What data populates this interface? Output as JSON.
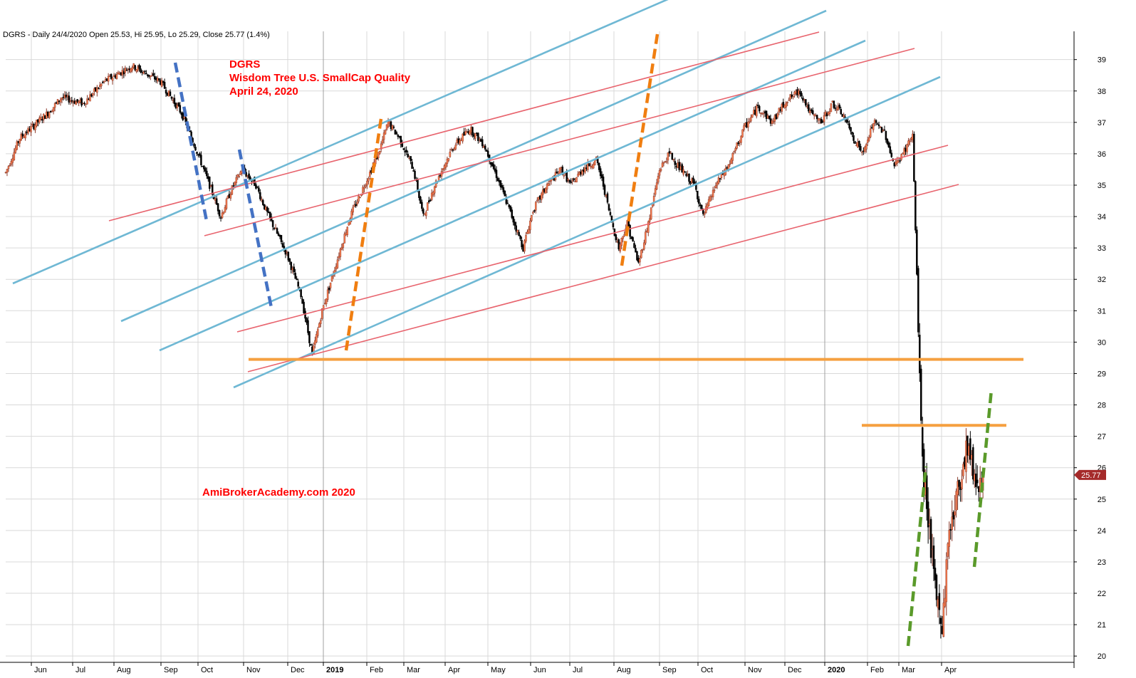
{
  "header_text": "DGRS - Daily 24/4/2020 Open 25.53, Hi 25.95, Lo 25.29, Close 25.77 (1.4%)",
  "annotations": {
    "ticker": "DGRS",
    "name": "Wisdom Tree U.S. SmallCap Quality",
    "date": "April 24, 2020",
    "watermark": "AmiBrokerAcademy.com  2020"
  },
  "colors": {
    "up_candle": "#ff7f50",
    "down_candle": "#000000",
    "channel_blue": "#6fb8d4",
    "trend_red": "#e8646e",
    "support_orange": "#f5a040",
    "dash_blue": "#4472c4",
    "dash_orange": "#f07e10",
    "dash_green": "#5a9a2a",
    "grid": "#d9d9d9",
    "last_price_bg": "#a52a2a"
  },
  "chart_data": {
    "type": "candlestick",
    "symbol": "DGRS",
    "ylim": [
      19.8,
      39.9
    ],
    "yticks": [
      20,
      21,
      22,
      23,
      24,
      25,
      26,
      27,
      28,
      29,
      30,
      31,
      32,
      33,
      34,
      35,
      36,
      37,
      38,
      39
    ],
    "x_tick_labels": [
      {
        "label": "Jun",
        "bold": false
      },
      {
        "label": "Jul",
        "bold": false
      },
      {
        "label": "Aug",
        "bold": false
      },
      {
        "label": "Sep",
        "bold": false
      },
      {
        "label": "Oct",
        "bold": false
      },
      {
        "label": "Nov",
        "bold": false
      },
      {
        "label": "Dec",
        "bold": false
      },
      {
        "label": "2019",
        "bold": true
      },
      {
        "label": "Feb",
        "bold": false
      },
      {
        "label": "Mar",
        "bold": false
      },
      {
        "label": "Apr",
        "bold": false
      },
      {
        "label": "May",
        "bold": false
      },
      {
        "label": "Jun",
        "bold": false
      },
      {
        "label": "Jul",
        "bold": false
      },
      {
        "label": "Aug",
        "bold": false
      },
      {
        "label": "Sep",
        "bold": false
      },
      {
        "label": "Oct",
        "bold": false
      },
      {
        "label": "Nov",
        "bold": false
      },
      {
        "label": "Dec",
        "bold": false
      },
      {
        "label": "2020",
        "bold": true
      },
      {
        "label": "Feb",
        "bold": false
      },
      {
        "label": "Mar",
        "bold": false
      },
      {
        "label": "Apr",
        "bold": false
      }
    ],
    "last_close": 25.77,
    "last_close_label": "25.77",
    "price_path": [
      [
        0,
        35.4
      ],
      [
        10,
        36.5
      ],
      [
        30,
        37.3
      ],
      [
        40,
        37.8
      ],
      [
        55,
        37.6
      ],
      [
        70,
        38.3
      ],
      [
        90,
        38.8
      ],
      [
        110,
        38.3
      ],
      [
        125,
        37.3
      ],
      [
        135,
        36.2
      ],
      [
        145,
        35.0
      ],
      [
        153,
        34.0
      ],
      [
        160,
        34.8
      ],
      [
        168,
        35.5
      ],
      [
        178,
        35.0
      ],
      [
        185,
        34.2
      ],
      [
        200,
        32.8
      ],
      [
        210,
        31.5
      ],
      [
        218,
        29.6
      ],
      [
        225,
        31.0
      ],
      [
        235,
        32.5
      ],
      [
        245,
        34.0
      ],
      [
        255,
        35.0
      ],
      [
        265,
        36.0
      ],
      [
        272,
        37.0
      ],
      [
        280,
        36.5
      ],
      [
        290,
        35.5
      ],
      [
        297,
        34.0
      ],
      [
        305,
        35.0
      ],
      [
        318,
        36.2
      ],
      [
        330,
        36.8
      ],
      [
        340,
        36.3
      ],
      [
        350,
        35.2
      ],
      [
        360,
        34.0
      ],
      [
        368,
        33.0
      ],
      [
        375,
        34.2
      ],
      [
        385,
        35.0
      ],
      [
        395,
        35.5
      ],
      [
        402,
        35.0
      ],
      [
        410,
        35.5
      ],
      [
        420,
        35.8
      ],
      [
        425,
        35.0
      ],
      [
        430,
        34.0
      ],
      [
        436,
        33.0
      ],
      [
        442,
        33.8
      ],
      [
        450,
        32.5
      ],
      [
        458,
        34.0
      ],
      [
        465,
        35.5
      ],
      [
        472,
        36.0
      ],
      [
        480,
        35.5
      ],
      [
        490,
        35.0
      ],
      [
        496,
        34.0
      ],
      [
        505,
        35.0
      ],
      [
        515,
        35.7
      ],
      [
        525,
        36.8
      ],
      [
        535,
        37.5
      ],
      [
        545,
        37.0
      ],
      [
        555,
        37.7
      ],
      [
        565,
        38.0
      ],
      [
        572,
        37.3
      ],
      [
        580,
        37.0
      ],
      [
        588,
        37.6
      ],
      [
        596,
        37.2
      ],
      [
        603,
        36.5
      ],
      [
        610,
        36.0
      ],
      [
        617,
        37.0
      ],
      [
        625,
        36.7
      ],
      [
        632,
        35.6
      ],
      [
        638,
        36.0
      ],
      [
        645,
        36.6
      ],
      [
        652,
        26.0
      ],
      [
        656,
        24.5
      ],
      [
        661,
        22.0
      ],
      [
        666,
        21.0
      ],
      [
        671,
        24.0
      ],
      [
        677,
        25.2
      ],
      [
        684,
        26.8
      ],
      [
        690,
        25.5
      ],
      [
        695,
        25.8
      ]
    ],
    "x_domain": [
      0,
      700
    ],
    "overlays": {
      "horizontal_support": [
        29.45,
        27.35
      ]
    }
  }
}
